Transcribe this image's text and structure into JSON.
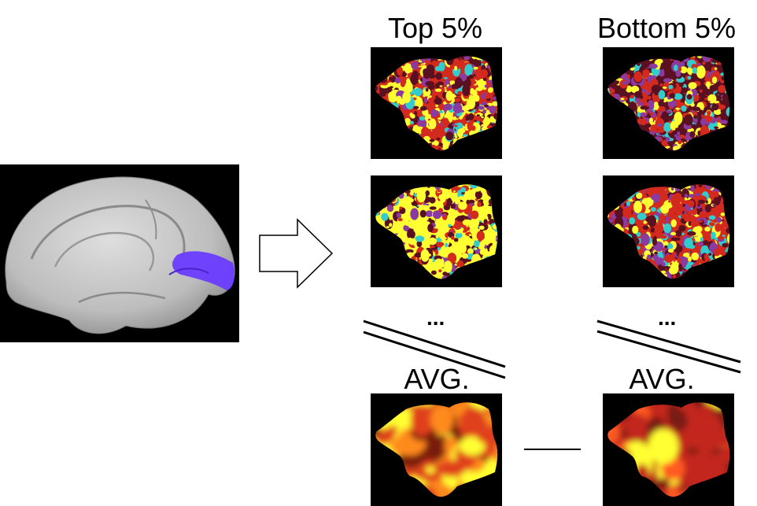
{
  "columns": {
    "top_label": "Top 5%",
    "bottom_label": "Bottom 5%"
  },
  "ellipsis": "...",
  "avg_label": "AVG.",
  "colors": {
    "background": "#ffffff",
    "panel_bg": "#000000",
    "brain_surface": "#c9c9c9",
    "roi_highlight": "#6a3cff",
    "map_yellow": "#ffff33",
    "map_red": "#d42a1e",
    "map_dark": "#5a1020",
    "map_cyan": "#33cccc"
  }
}
